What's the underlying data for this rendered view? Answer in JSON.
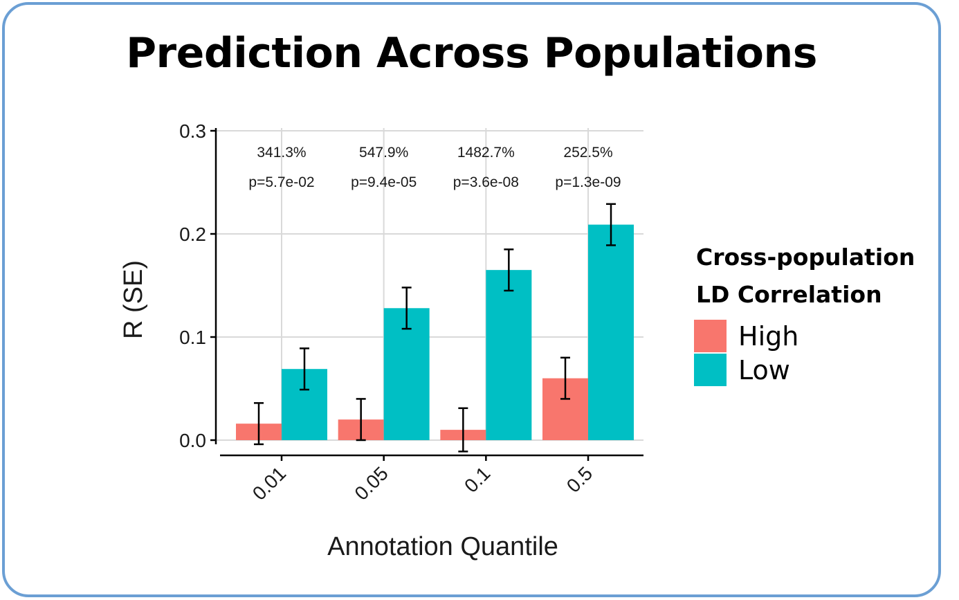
{
  "title": "Prediction Across Populations",
  "legend": {
    "title_lines": [
      "Cross-population",
      "LD Correlation"
    ],
    "items": [
      {
        "label": "High",
        "color": "#f8766d"
      },
      {
        "label": "Low",
        "color": "#00bfc4"
      }
    ]
  },
  "chart_data": {
    "type": "bar",
    "title": "",
    "xlabel": "Annotation Quantile",
    "ylabel": "R (SE)",
    "categories": [
      "0.01",
      "0.05",
      "0.1",
      "0.5"
    ],
    "ylim": [
      0,
      0.3
    ],
    "yticks": [
      "0.0",
      "0.1",
      "0.2",
      "0.3"
    ],
    "ytick_values": [
      0,
      0.1,
      0.2,
      0.3
    ],
    "grid": true,
    "legend_position": "right",
    "series": [
      {
        "name": "High",
        "color": "#f8766d",
        "values": [
          0.016,
          0.02,
          0.01,
          0.06
        ],
        "se": [
          0.02,
          0.02,
          0.021,
          0.02
        ]
      },
      {
        "name": "Low",
        "color": "#00bfc4",
        "values": [
          0.069,
          0.128,
          0.165,
          0.209
        ],
        "se": [
          0.02,
          0.02,
          0.02,
          0.02
        ]
      }
    ],
    "annotations": [
      {
        "percent": "341.3%",
        "pvalue": "p=5.7e-02"
      },
      {
        "percent": "547.9%",
        "pvalue": "p=9.4e-05"
      },
      {
        "percent": "1482.7%",
        "pvalue": "p=3.6e-08"
      },
      {
        "percent": "252.5%",
        "pvalue": "p=1.3e-09"
      }
    ]
  }
}
